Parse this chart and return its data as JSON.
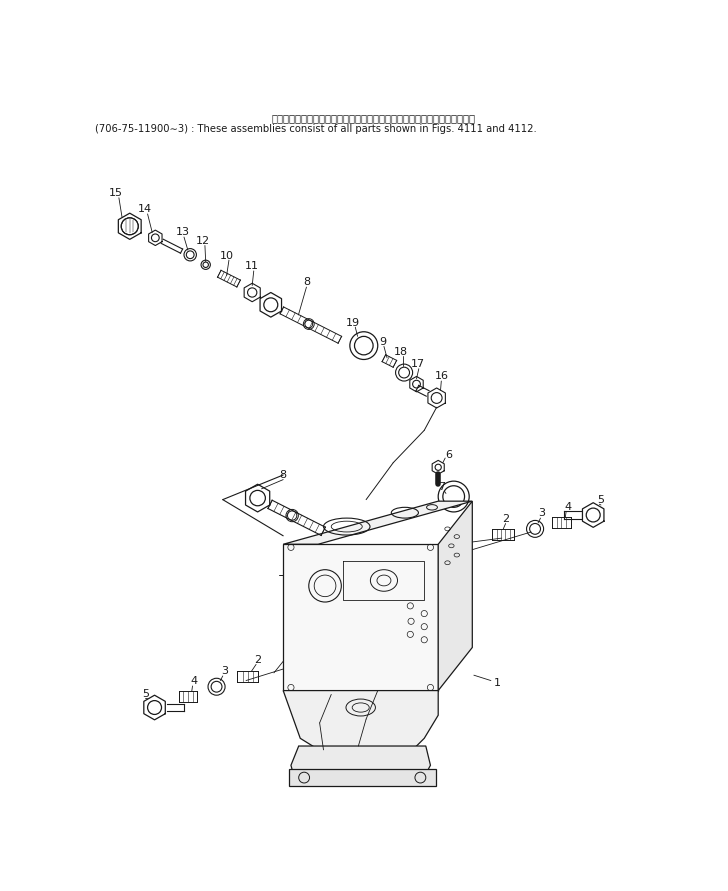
{
  "title_jp": "これらのアセンブリの構成部品は第４１１図および第４１２図を含みます。",
  "title_en": "(706-75-11900∼3) : These assemblies consist of all parts shown in Figs. 4111 and 4112.",
  "bg_color": "#ffffff",
  "line_color": "#1a1a1a",
  "text_color": "#1a1a1a",
  "fig_width": 7.28,
  "fig_height": 8.91,
  "dpi": 100
}
